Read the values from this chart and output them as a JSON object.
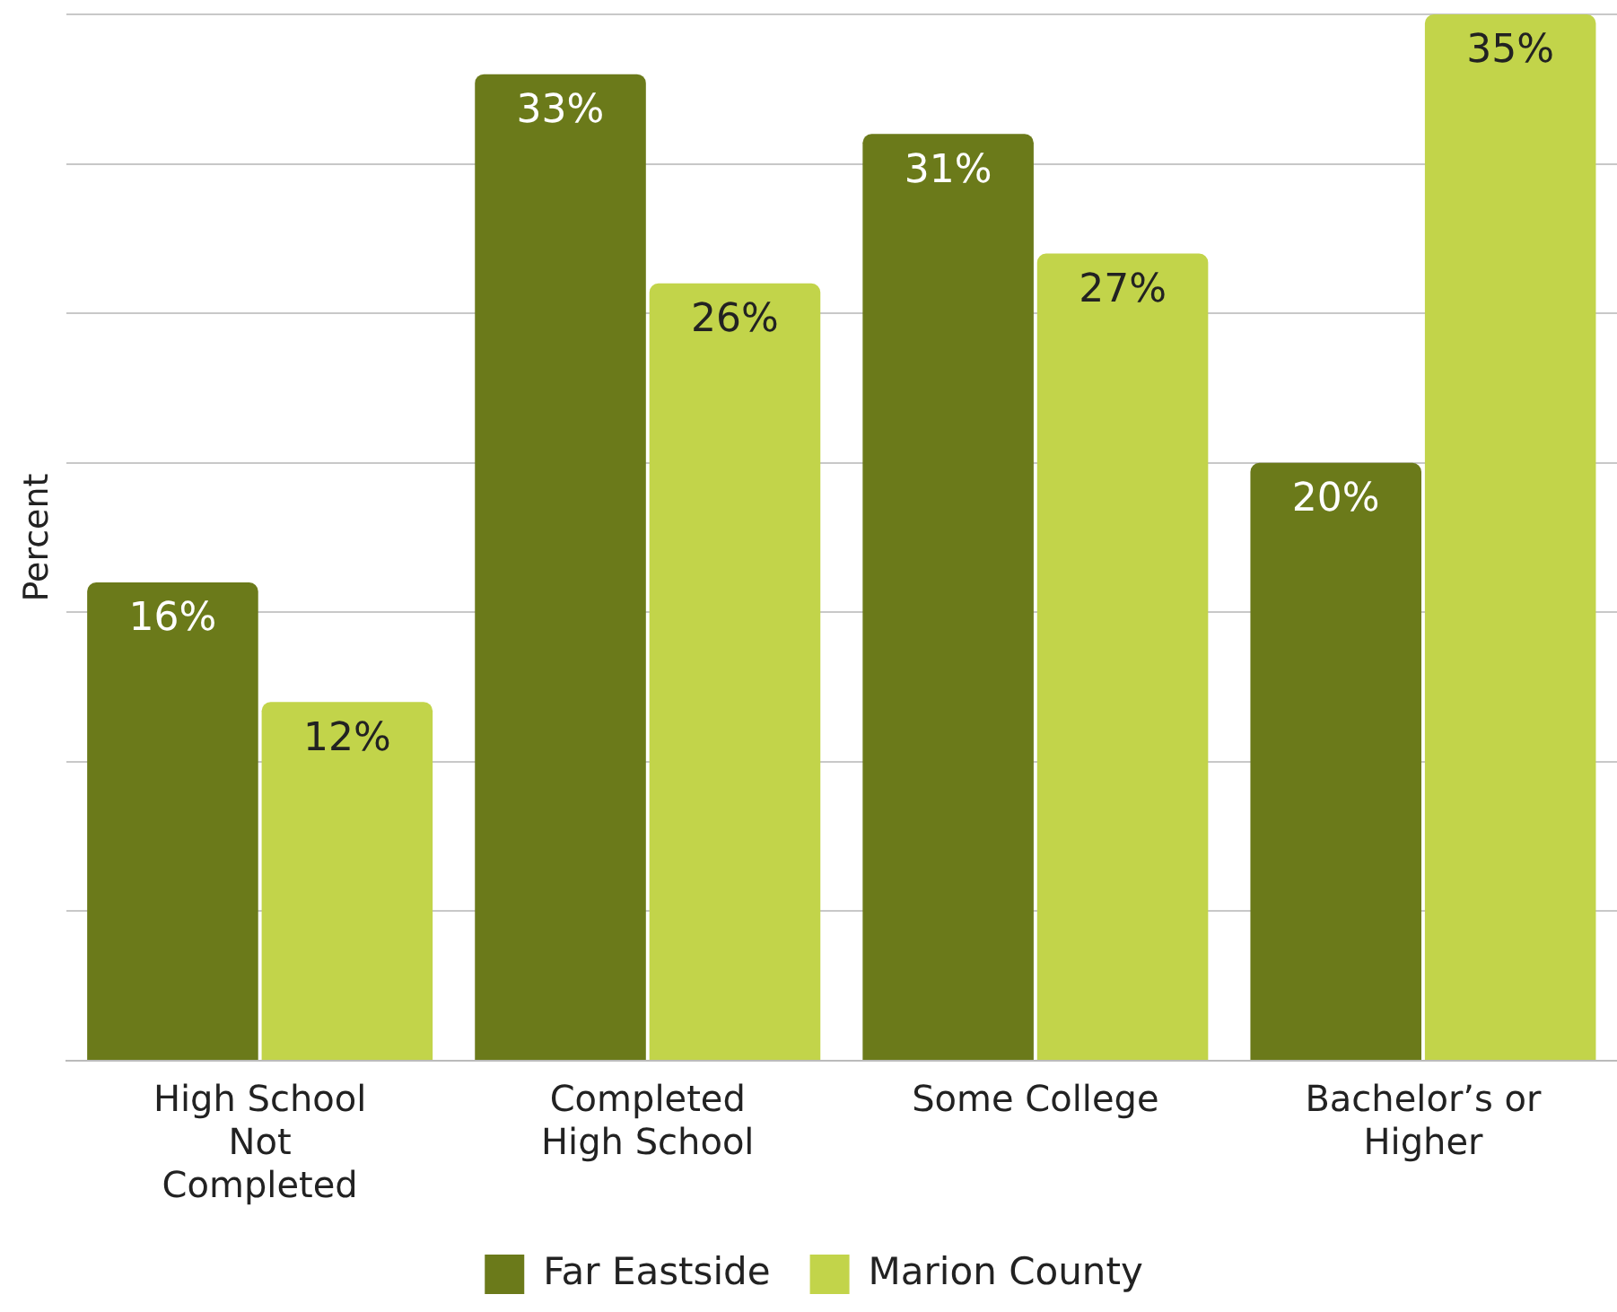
{
  "chart_data": {
    "type": "bar",
    "ylabel": "Percent",
    "categories": [
      "High School Not Completed",
      "Completed High School",
      "Some College",
      "Bachelor’s or Higher"
    ],
    "series": [
      {
        "name": "Far Eastside",
        "color": "#6b7a1a",
        "values": [
          16,
          33,
          31,
          20
        ],
        "value_labels": [
          "16%",
          "33%",
          "31%",
          "20%"
        ]
      },
      {
        "name": "Marion County",
        "color": "#c2d44a",
        "values": [
          12,
          26,
          27,
          35
        ],
        "value_labels": [
          "12%",
          "26%",
          "27%",
          "35%"
        ]
      }
    ],
    "grid": "y",
    "legend": "bottom",
    "tick_labels": "x"
  }
}
